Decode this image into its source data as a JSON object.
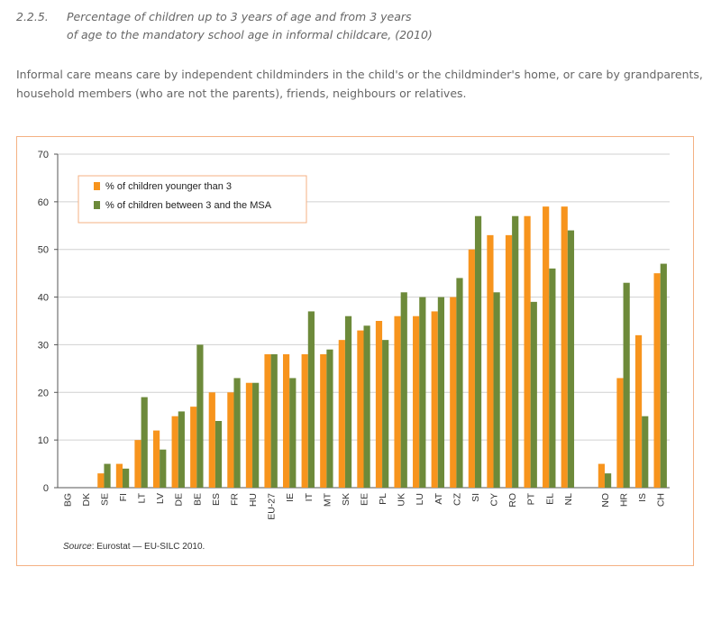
{
  "header": {
    "number": "2.2.5.",
    "title_line1": "Percentage of children up to 3 years of age and from 3 years",
    "title_line2": "of age to the mandatory school age in informal childcare, (2010)"
  },
  "intro": {
    "text": "Informal care means care by independent childminders in the child's or the childminder's home, or care by grandparents, household members (who are not the parents), friends, neighbours or relatives."
  },
  "source": {
    "label": "Source",
    "text": ": Eurostat — EU-SILC 2010."
  },
  "chart_data": {
    "type": "bar",
    "categories": [
      "BG",
      "DK",
      "SE",
      "FI",
      "LT",
      "LV",
      "DE",
      "BE",
      "ES",
      "FR",
      "HU",
      "EU-27",
      "IE",
      "IT",
      "MT",
      "SK",
      "EE",
      "PL",
      "UK",
      "LU",
      "AT",
      "CZ",
      "SI",
      "CY",
      "RO",
      "PT",
      "EL",
      "NL",
      "",
      "NO",
      "HR",
      "IS",
      "CH"
    ],
    "series": [
      {
        "name": "% of children younger than 3",
        "color": "#f7941d",
        "values": [
          0,
          0,
          3,
          5,
          10,
          12,
          15,
          17,
          20,
          20,
          22,
          28,
          28,
          28,
          28,
          31,
          33,
          35,
          36,
          36,
          37,
          40,
          50,
          53,
          53,
          57,
          59,
          59,
          null,
          5,
          23,
          32,
          45
        ]
      },
      {
        "name": "% of children between 3 and the MSA",
        "color": "#6d8a3a",
        "values": [
          0,
          0,
          5,
          4,
          19,
          8,
          16,
          30,
          14,
          23,
          22,
          28,
          23,
          37,
          29,
          36,
          34,
          31,
          41,
          40,
          40,
          44,
          57,
          41,
          57,
          39,
          46,
          54,
          null,
          3,
          43,
          15,
          47
        ]
      }
    ],
    "ylim": [
      0,
      70
    ],
    "yticks": [
      0,
      10,
      20,
      30,
      40,
      50,
      60,
      70
    ],
    "grid": true,
    "legend_position": "top-left"
  }
}
